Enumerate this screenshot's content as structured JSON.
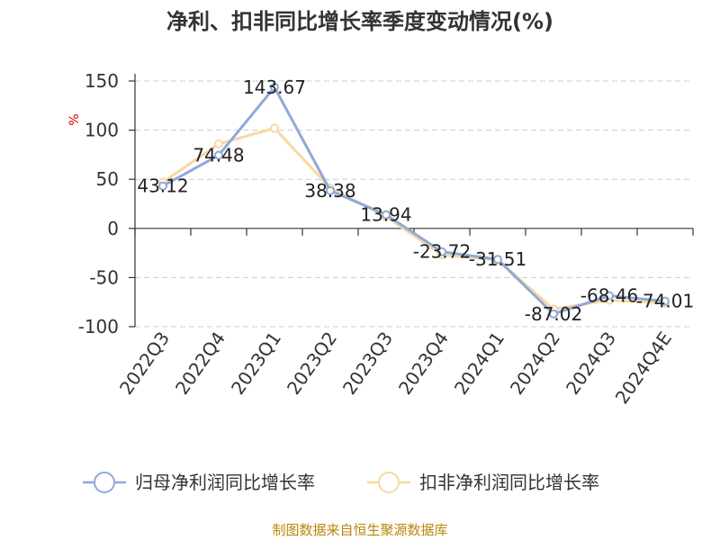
{
  "chart_data": {
    "type": "line",
    "title": "净利、扣非同比增长率季度变动情况(%)",
    "unit_label": "%",
    "categories": [
      "2022Q3",
      "2022Q4",
      "2023Q1",
      "2023Q2",
      "2023Q3",
      "2023Q4",
      "2024Q1",
      "2024Q2",
      "2024Q3",
      "2024Q4E"
    ],
    "ylim": [
      -100,
      150
    ],
    "yticks": [
      150,
      100,
      50,
      0,
      -50,
      -100
    ],
    "grid": true,
    "legend_position": "bottom",
    "series": [
      {
        "name": "归母净利润同比增长率",
        "color": "#8fa9d8",
        "values": [
          43.12,
          74.48,
          143.67,
          38.38,
          13.94,
          -23.72,
          -31.51,
          -87.02,
          -68.46,
          -74.01
        ],
        "labels": [
          "43.12",
          "74.48",
          "143.67",
          "38.38",
          "13.94",
          "-23.72",
          "-31.51",
          "-87.02",
          "-68.46",
          "-74.01"
        ]
      },
      {
        "name": "扣非净利润同比增长率",
        "color": "#f7d9a0",
        "values": [
          47,
          86,
          102,
          41,
          12,
          -27,
          -32,
          -82,
          -73,
          -76
        ]
      }
    ]
  },
  "source": "制图数据来自恒生聚源数据库"
}
